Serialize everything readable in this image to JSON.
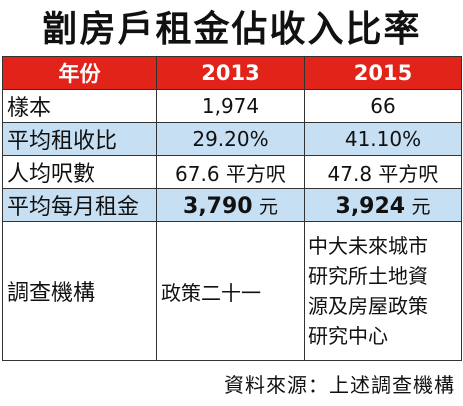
{
  "title": "劏房戶租金佔收入比率",
  "header": {
    "col0": "年份",
    "col1": "2013",
    "col2": "2015"
  },
  "rows": [
    {
      "label": "樣本",
      "v2013": "1,974",
      "v2015": "66"
    },
    {
      "label": "平均租收比",
      "v2013": "29.20%",
      "v2015": "41.10%"
    },
    {
      "label": "人均呎數",
      "v2013": "67.6 平方呎",
      "v2015": "47.8 平方呎"
    },
    {
      "label": "平均每月租金",
      "v2013_num": "3,790",
      "v2013_unit": "元",
      "v2015_num": "3,924",
      "v2015_unit": "元"
    }
  ],
  "institution": {
    "label": "調查機構",
    "v2013": "政策二十一",
    "v2015_lines": [
      "中大未來城市",
      "研究所土地資",
      "源及房屋政策",
      "研究中心"
    ]
  },
  "source": "資料來源：上述調查機構",
  "colors": {
    "header_bg": "#e2231a",
    "header_text": "#ffffff",
    "row_highlight": "#c6dff3",
    "border": "#333333"
  }
}
